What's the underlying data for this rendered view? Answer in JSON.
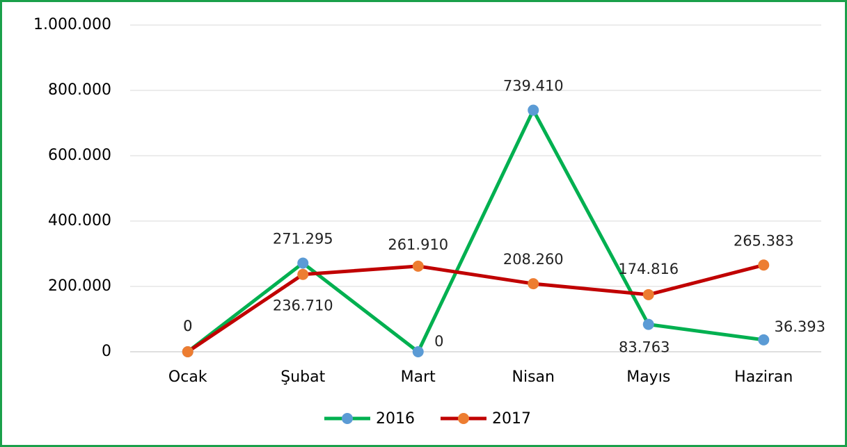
{
  "chart_data": {
    "type": "line",
    "categories": [
      "Ocak",
      "Şubat",
      "Mart",
      "Nisan",
      "Mayıs",
      "Haziran"
    ],
    "series": [
      {
        "name": "2016",
        "color": "#00b050",
        "marker_color": "#5b9bd5",
        "values": [
          0,
          271295,
          0,
          739410,
          83763,
          36393
        ],
        "value_labels": [
          "0",
          "271.295",
          "0",
          "739.410",
          "83.763",
          "36.393"
        ]
      },
      {
        "name": "2017",
        "color": "#c00000",
        "marker_color": "#ed7d31",
        "values": [
          0,
          236710,
          261910,
          208260,
          174816,
          265383
        ],
        "value_labels": [
          "0",
          "236.710",
          "261.910",
          "208.260",
          "174.816",
          "265.383"
        ]
      }
    ],
    "ylim": [
      0,
      1000000
    ],
    "yticks": [
      0,
      {
        "value": 200000,
        "label": "200.000"
      },
      {
        "value": 400000,
        "label": "400.000"
      },
      {
        "value": 600000,
        "label": "600.000"
      },
      {
        "value": 800000,
        "label": "800.000"
      },
      {
        "value": 1000000,
        "label": "1.000.000"
      }
    ],
    "grid": true,
    "legend": "bottom"
  }
}
